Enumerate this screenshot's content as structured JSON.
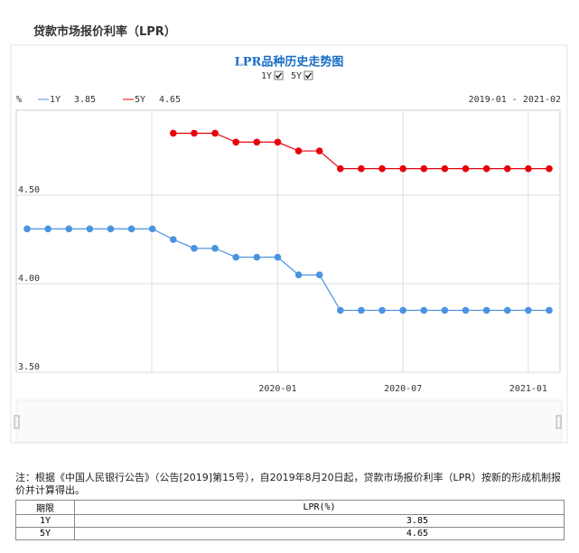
{
  "header": {
    "title": "贷款市场报价利率（LPR）"
  },
  "chart_data": {
    "type": "line",
    "title": "LPR品种历史走势图",
    "unit": "%",
    "range": "2019-01 - 2021-02",
    "x": [
      "2019-01",
      "2019-02",
      "2019-03",
      "2019-04",
      "2019-05",
      "2019-06",
      "2019-07",
      "2019-08",
      "2019-09",
      "2019-10",
      "2019-11",
      "2019-12",
      "2020-01",
      "2020-02",
      "2020-03",
      "2020-04",
      "2020-05",
      "2020-06",
      "2020-07",
      "2020-08",
      "2020-09",
      "2020-10",
      "2020-11",
      "2020-12",
      "2021-01",
      "2021-02"
    ],
    "series": [
      {
        "name": "1Y",
        "color": "#4a93e0",
        "latest": 3.85,
        "values": [
          4.31,
          4.31,
          4.31,
          4.31,
          4.31,
          4.31,
          4.31,
          4.25,
          4.2,
          4.2,
          4.15,
          4.15,
          4.15,
          4.05,
          4.05,
          3.85,
          3.85,
          3.85,
          3.85,
          3.85,
          3.85,
          3.85,
          3.85,
          3.85,
          3.85,
          3.85
        ]
      },
      {
        "name": "5Y",
        "color": "#e8000b",
        "latest": 4.65,
        "values": [
          null,
          null,
          null,
          null,
          null,
          null,
          null,
          4.85,
          4.85,
          4.85,
          4.8,
          4.8,
          4.8,
          4.75,
          4.75,
          4.65,
          4.65,
          4.65,
          4.65,
          4.65,
          4.65,
          4.65,
          4.65,
          4.65,
          4.65,
          4.65
        ]
      }
    ],
    "ylim": [
      3.5,
      4.98
    ],
    "yticks": [
      {
        "value": 3.5,
        "label": "3.50"
      },
      {
        "value": 4,
        "label": "4.00"
      },
      {
        "value": 4.5,
        "label": "4.50"
      }
    ],
    "xticks": [
      "2020-01",
      "2020-07",
      "2021-01"
    ],
    "grid": true
  },
  "note": "注：根据《中国人民银行公告》（公告[2019]第15号），自2019年8月20日起，贷款市场报价利率（LPR）按新的形成机制报价并计算得出。",
  "table": {
    "columns": [
      "期限",
      "LPR(%)"
    ],
    "rows": [
      [
        "1Y",
        "3.85"
      ],
      [
        "5Y",
        "4.65"
      ]
    ]
  }
}
